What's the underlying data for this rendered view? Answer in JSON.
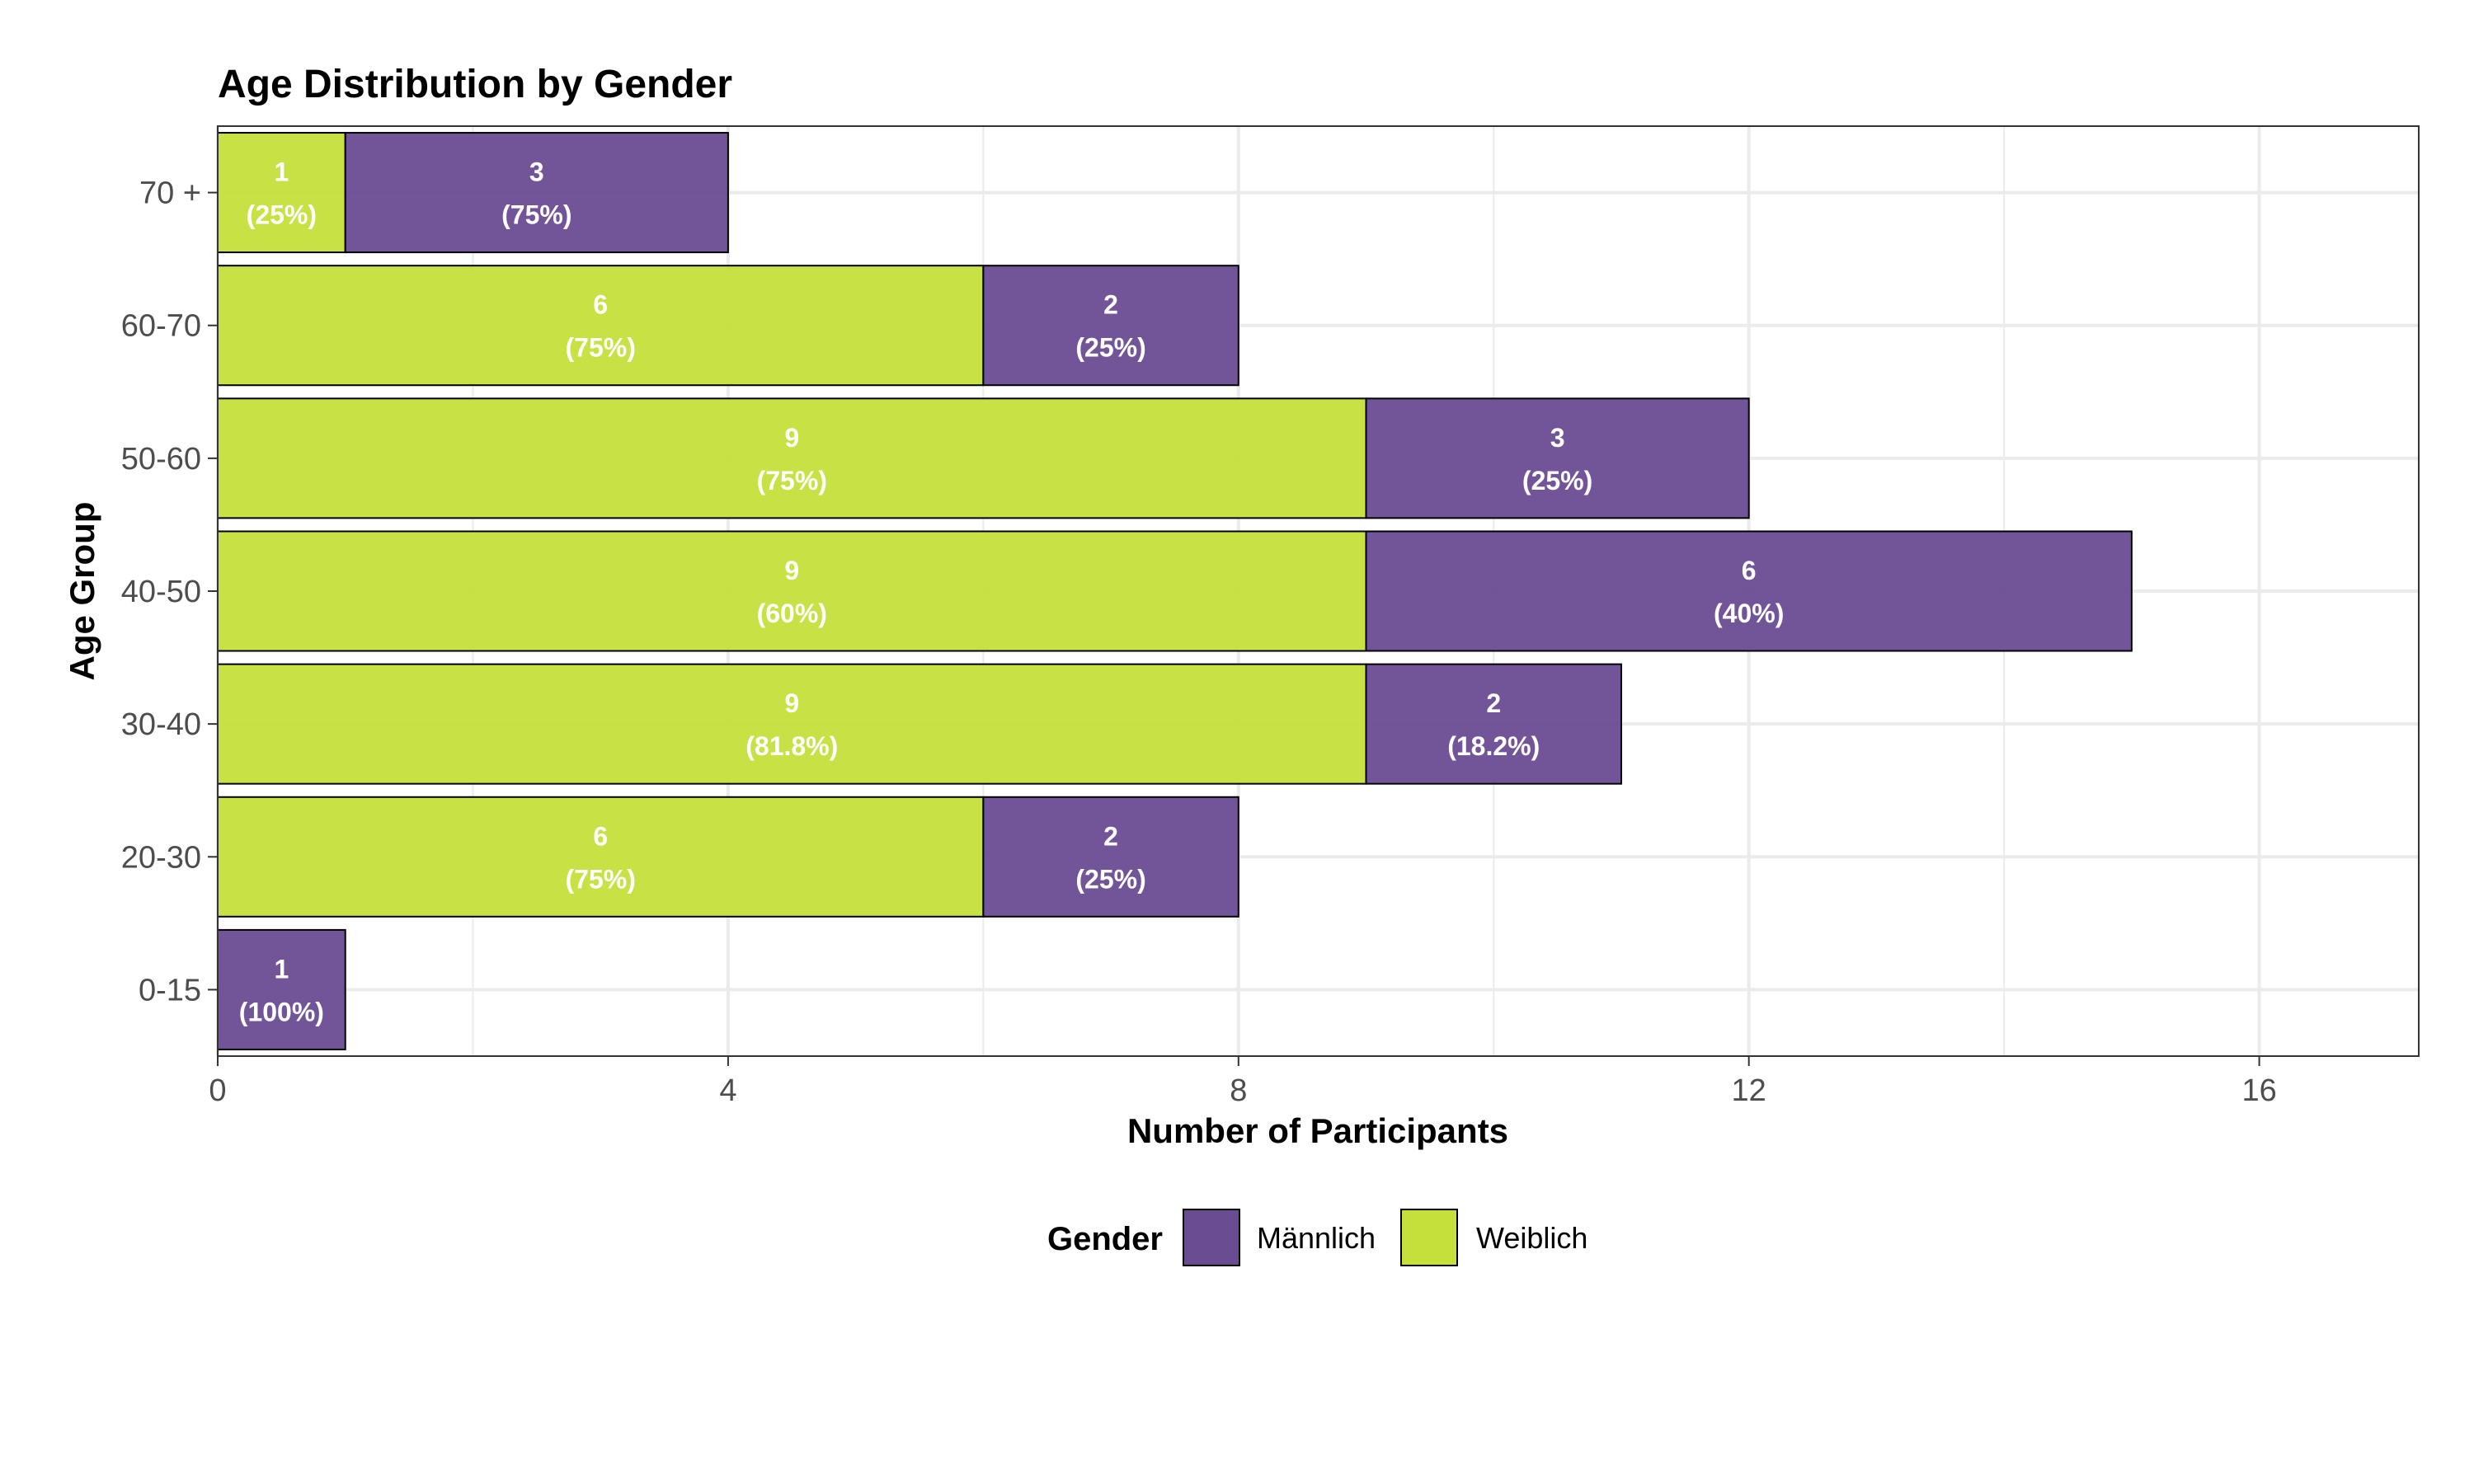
{
  "chart_data": {
    "type": "bar",
    "orientation": "horizontal",
    "stacked": true,
    "title": "Age Distribution by Gender",
    "xlabel": "Number of Participants",
    "ylabel": "Age Group",
    "xlim": [
      0,
      17.25
    ],
    "xticks": [
      0,
      4,
      8,
      12,
      16
    ],
    "categories": [
      "0-15",
      "20-30",
      "30-40",
      "40-50",
      "50-60",
      "60-70",
      "70 +"
    ],
    "series": [
      {
        "name": "Weiblich",
        "color": "#c5e03b",
        "values": [
          0,
          6,
          9,
          9,
          9,
          6,
          1
        ],
        "labels": [
          null,
          "(75%)",
          "(81.8%)",
          "(60%)",
          "(75%)",
          "(75%)",
          "(25%)"
        ]
      },
      {
        "name": "Männlich",
        "color": "#6a4c93",
        "values": [
          1,
          2,
          2,
          6,
          3,
          2,
          3
        ],
        "labels": [
          "(100%)",
          "(25%)",
          "(18.2%)",
          "(40%)",
          "(25%)",
          "(25%)",
          "(75%)"
        ]
      }
    ],
    "stack_order": [
      "Weiblich",
      "Männlich"
    ],
    "grid": true,
    "legend": {
      "title": "Gender",
      "position": "bottom",
      "entries": [
        {
          "label": "Männlich",
          "color": "#6a4c93"
        },
        {
          "label": "Weiblich",
          "color": "#c5e03b"
        }
      ]
    }
  }
}
